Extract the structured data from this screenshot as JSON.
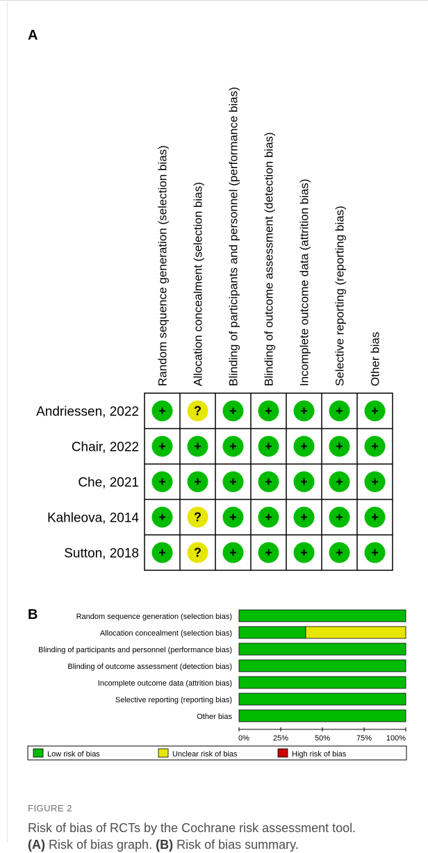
{
  "panel_a_label": "A",
  "panel_b_label": "B",
  "figure_label": "FIGURE 2",
  "caption": {
    "main": "Risk of bias of RCTs by the Cochrane risk assessment tool.",
    "a_ref": "(A)",
    "a_text": " Risk of bias graph. ",
    "b_ref": "(B)",
    "b_text": " Risk of bias summary."
  },
  "colors": {
    "low": "#00bb00",
    "unclear": "#e6e600",
    "high": "#cc0000"
  },
  "chart_data": [
    {
      "type": "table",
      "domains": [
        "Random sequence generation (selection bias)",
        "Allocation concealment (selection bias)",
        "Blinding of participants and personnel (performance bias)",
        "Blinding of outcome assessment (detection bias)",
        "Incomplete outcome data (attrition bias)",
        "Selective reporting (reporting bias)",
        "Other bias"
      ],
      "studies": [
        "Andriessen, 2022",
        "Chair, 2022",
        "Che, 2021",
        "Kahleova, 2014",
        "Sutton, 2018"
      ],
      "symbols": {
        "low": "+",
        "unclear": "?",
        "high": "-"
      },
      "judgements": [
        [
          "low",
          "unclear",
          "low",
          "low",
          "low",
          "low",
          "low"
        ],
        [
          "low",
          "low",
          "low",
          "low",
          "low",
          "low",
          "low"
        ],
        [
          "low",
          "low",
          "low",
          "low",
          "low",
          "low",
          "low"
        ],
        [
          "low",
          "unclear",
          "low",
          "low",
          "low",
          "low",
          "low"
        ],
        [
          "low",
          "unclear",
          "low",
          "low",
          "low",
          "low",
          "low"
        ]
      ]
    },
    {
      "type": "bar",
      "orientation": "horizontal",
      "stacked": true,
      "categories": [
        "Random sequence generation (selection bias)",
        "Allocation concealment (selection bias)",
        "Blinding of participants and personnel (performance bias)",
        "Blinding of outcome assessment (detection bias)",
        "Incomplete outcome data (attrition bias)",
        "Selective reporting (reporting bias)",
        "Other bias"
      ],
      "series": [
        {
          "name": "Low risk of bias",
          "color": "#00bb00",
          "values": [
            100,
            40,
            100,
            100,
            100,
            100,
            100
          ]
        },
        {
          "name": "Unclear risk of bias",
          "color": "#e6e600",
          "values": [
            0,
            60,
            0,
            0,
            0,
            0,
            0
          ]
        },
        {
          "name": "High risk of bias",
          "color": "#cc0000",
          "values": [
            0,
            0,
            0,
            0,
            0,
            0,
            0
          ]
        }
      ],
      "xlim": [
        0,
        100
      ],
      "xticks": [
        "0%",
        "25%",
        "50%",
        "75%",
        "100%"
      ],
      "legend": "bottom"
    }
  ]
}
